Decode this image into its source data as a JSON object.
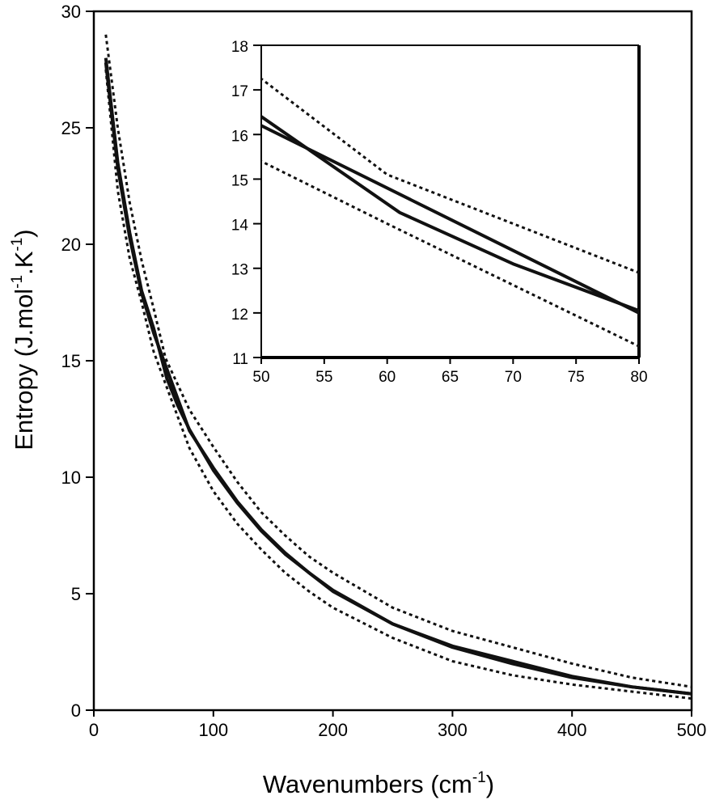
{
  "chart_data": {
    "type": "line",
    "xlabel": "Wavenumbers (cm",
    "xlabel_sup": "-1",
    "xlabel_end": ")",
    "ylabel": "Entropy (J.mol",
    "ylabel_sup1": "-1",
    "ylabel_mid": ".K",
    "ylabel_sup2": "-1",
    "ylabel_end": ")",
    "xlim": [
      0,
      500
    ],
    "ylim": [
      0,
      30
    ],
    "xticks": [
      0,
      100,
      200,
      300,
      400,
      500
    ],
    "yticks": [
      0,
      5,
      10,
      15,
      20,
      25,
      30
    ],
    "series": [
      {
        "name": "solid-1",
        "style": "solid",
        "x": [
          10,
          20,
          30,
          40,
          50,
          61,
          70,
          80,
          100,
          120,
          140,
          160,
          180,
          200,
          250,
          300,
          350,
          400,
          450,
          500
        ],
        "y": [
          28,
          23.5,
          20.5,
          18,
          16.4,
          14.25,
          13.1,
          12.05,
          10.3,
          8.9,
          7.7,
          6.7,
          5.9,
          5.1,
          3.7,
          2.75,
          2.1,
          1.45,
          1.0,
          0.7
        ]
      },
      {
        "name": "solid-2",
        "style": "solid",
        "x": [
          10,
          20,
          30,
          40,
          50,
          80,
          100,
          120,
          140,
          160,
          180,
          200,
          250,
          300,
          350,
          400,
          450,
          500
        ],
        "y": [
          27.8,
          23.3,
          20.3,
          17.9,
          16.2,
          12.0,
          10.4,
          8.95,
          7.75,
          6.75,
          5.9,
          5.15,
          3.7,
          2.7,
          2.0,
          1.4,
          1.0,
          0.7
        ]
      },
      {
        "name": "upper-bound",
        "style": "dotted",
        "x": [
          10,
          20,
          30,
          40,
          50,
          60,
          80,
          100,
          120,
          140,
          160,
          180,
          200,
          250,
          300,
          350,
          400,
          450,
          500
        ],
        "y": [
          29,
          25,
          21.8,
          19.3,
          17.25,
          15.1,
          12.9,
          11.3,
          9.8,
          8.5,
          7.5,
          6.6,
          5.9,
          4.4,
          3.4,
          2.7,
          2.0,
          1.4,
          1.0
        ]
      },
      {
        "name": "lower-bound",
        "style": "dotted",
        "x": [
          10,
          20,
          30,
          40,
          50,
          60,
          80,
          100,
          120,
          140,
          160,
          180,
          200,
          250,
          300,
          350,
          400,
          450,
          500
        ],
        "y": [
          27.5,
          22.3,
          19.4,
          17.5,
          15.4,
          14.0,
          11.25,
          9.4,
          8.0,
          6.9,
          5.9,
          5.1,
          4.4,
          3.1,
          2.1,
          1.5,
          1.1,
          0.8,
          0.5
        ]
      }
    ],
    "inset": {
      "xlim": [
        50,
        80
      ],
      "ylim": [
        11,
        18
      ],
      "xticks": [
        50,
        55,
        60,
        65,
        70,
        75,
        80
      ],
      "yticks": [
        11,
        12,
        13,
        14,
        15,
        16,
        17,
        18
      ]
    }
  }
}
